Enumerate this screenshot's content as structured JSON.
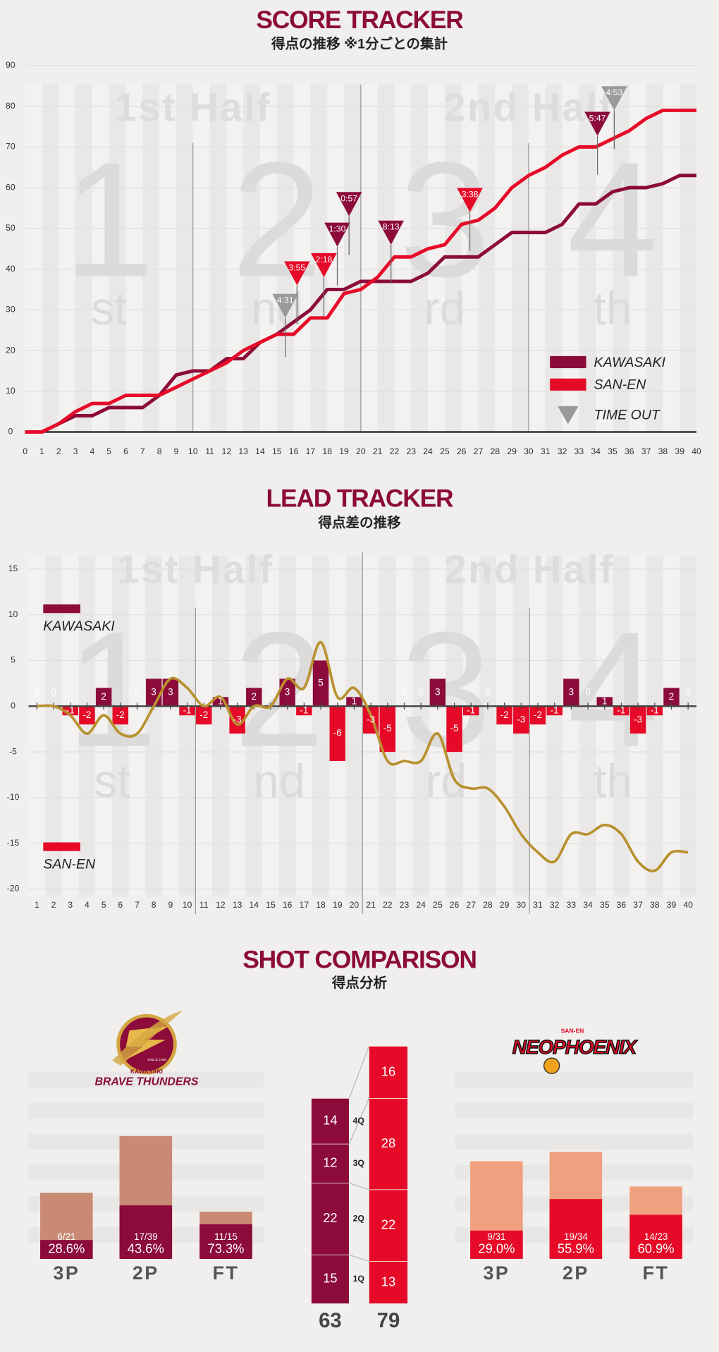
{
  "chart_data": [
    {
      "type": "line",
      "title": "SCORE TRACKER",
      "subtitle": "得点の推移 ※1分ごとの集計",
      "half_labels": [
        "1st Half",
        "2nd Half"
      ],
      "quarter_numbers": [
        "1",
        "2",
        "3",
        "4"
      ],
      "quarter_suffixes": [
        "st",
        "nd",
        "rd",
        "th"
      ],
      "x": [
        0,
        1,
        2,
        3,
        4,
        5,
        6,
        7,
        8,
        9,
        10,
        11,
        12,
        13,
        14,
        15,
        16,
        17,
        18,
        19,
        20,
        21,
        22,
        23,
        24,
        25,
        26,
        27,
        28,
        29,
        30,
        31,
        32,
        33,
        34,
        35,
        36,
        37,
        38,
        39,
        40
      ],
      "series": [
        {
          "name": "KAWASAKI",
          "color": "#8c0b3b",
          "values": [
            0,
            0,
            2,
            4,
            4,
            6,
            6,
            6,
            9,
            14,
            15,
            15,
            18,
            18,
            22,
            24,
            27,
            30,
            35,
            35,
            37,
            37,
            37,
            37,
            39,
            43,
            43,
            43,
            46,
            49,
            49,
            49,
            51,
            56,
            56,
            59,
            60,
            60,
            61,
            63,
            63
          ]
        },
        {
          "name": "SAN-EN",
          "color": "#e60a28",
          "values": [
            0,
            0,
            2,
            5,
            7,
            7,
            9,
            9,
            9,
            11,
            13,
            15,
            17,
            20,
            22,
            24,
            24,
            28,
            28,
            34,
            35,
            38,
            43,
            43,
            45,
            46,
            51,
            52,
            55,
            60,
            63,
            65,
            68,
            70,
            70,
            72,
            74,
            77,
            79,
            79,
            79
          ]
        }
      ],
      "xlim": [
        0,
        40
      ],
      "xticks": [
        0,
        1,
        2,
        3,
        4,
        5,
        6,
        7,
        8,
        9,
        10,
        11,
        12,
        13,
        14,
        15,
        16,
        17,
        18,
        19,
        20,
        21,
        22,
        23,
        24,
        25,
        26,
        27,
        28,
        29,
        30,
        31,
        32,
        33,
        34,
        35,
        36,
        37,
        38,
        39,
        40
      ],
      "ylim": [
        0,
        90
      ],
      "yticks": [
        0,
        10,
        20,
        30,
        40,
        50,
        60,
        70,
        80,
        90
      ],
      "grid": true,
      "quarter_breaks": [
        10,
        20,
        30
      ],
      "timeouts": [
        {
          "label": "4:31",
          "x": 15.5,
          "y": 28,
          "color": "#9a9a9a"
        },
        {
          "label": "3:55",
          "x": 16.2,
          "y": 36,
          "color": "#e60a28"
        },
        {
          "label": "2:18",
          "x": 17.8,
          "y": 38,
          "color": "#e60a28"
        },
        {
          "label": "1:30",
          "x": 18.6,
          "y": 45.5,
          "color": "#8c0b3b"
        },
        {
          "label": "0:57",
          "x": 19.3,
          "y": 53,
          "color": "#8c0b3b"
        },
        {
          "label": "8:13",
          "x": 21.8,
          "y": 46,
          "color": "#8c0b3b"
        },
        {
          "label": "3:38",
          "x": 26.5,
          "y": 54,
          "color": "#e60a28"
        },
        {
          "label": "5:47",
          "x": 34.1,
          "y": 72.7,
          "color": "#8c0b3b"
        },
        {
          "label": "4:53",
          "x": 35.1,
          "y": 79,
          "color": "#9a9a9a"
        }
      ],
      "timeout_legend": "TIME OUT",
      "timeout_color": "#9a9a9a"
    },
    {
      "type": "bar",
      "title": "LEAD TRACKER",
      "subtitle": "得点差の推移",
      "half_labels": [
        "1st Half",
        "2nd Half"
      ],
      "quarter_numbers": [
        "1",
        "2",
        "3",
        "4"
      ],
      "quarter_suffixes": [
        "st",
        "nd",
        "rd",
        "th"
      ],
      "x": [
        1,
        2,
        3,
        4,
        5,
        6,
        7,
        8,
        9,
        10,
        11,
        12,
        13,
        14,
        15,
        16,
        17,
        18,
        19,
        20,
        21,
        22,
        23,
        24,
        25,
        26,
        27,
        28,
        29,
        30,
        31,
        32,
        33,
        34,
        35,
        36,
        37,
        38,
        39,
        40
      ],
      "values": [
        0,
        0,
        -1,
        -2,
        2,
        -2,
        0,
        3,
        3,
        -1,
        -2,
        1,
        -3,
        2,
        0,
        3,
        -1,
        5,
        -6,
        1,
        -3,
        -5,
        0,
        0,
        3,
        -5,
        -1,
        0,
        -2,
        -3,
        -2,
        -1,
        3,
        0,
        1,
        -1,
        -3,
        -1,
        2,
        0
      ],
      "legend": [
        {
          "name": "KAWASAKI",
          "color": "#8c0b3b"
        },
        {
          "name": "SAN-EN",
          "color": "#e60a28"
        }
      ],
      "lead_line": {
        "color": "#b8902e",
        "values": [
          0,
          0,
          -1,
          -3,
          -1,
          -3,
          -3,
          0,
          3,
          2,
          0,
          1,
          -2,
          0,
          0,
          3,
          2,
          7,
          1,
          2,
          -1,
          -6,
          -6,
          -6,
          -3,
          -8,
          -9,
          -9,
          -11,
          -14,
          -16,
          -17,
          -14,
          -14,
          -13,
          -14,
          -17,
          -18,
          -16,
          -16
        ]
      },
      "xlim": [
        0.5,
        40.5
      ],
      "xticks": [
        1,
        2,
        3,
        4,
        5,
        6,
        7,
        8,
        9,
        10,
        11,
        12,
        13,
        14,
        15,
        16,
        17,
        18,
        19,
        20,
        21,
        22,
        23,
        24,
        25,
        26,
        27,
        28,
        29,
        30,
        31,
        32,
        33,
        34,
        35,
        36,
        37,
        38,
        39,
        40
      ],
      "ylim": [
        -20,
        15
      ],
      "yticks": [
        -20,
        -15,
        -10,
        -5,
        0,
        5,
        10,
        15
      ],
      "grid": true,
      "quarter_breaks": [
        10.5,
        20.5,
        30.5
      ]
    },
    {
      "type": "shots",
      "title": "SHOT COMPARISON",
      "subtitle": "得点分析",
      "categories": [
        "3P",
        "2P",
        "FT"
      ],
      "quarter_categories": [
        "1Q",
        "2Q",
        "3Q",
        "4Q"
      ],
      "teams": [
        {
          "logo_text": [
            "KAWASAKI",
            "BRAVE THUNDERS",
            "SINCE 1950"
          ],
          "color": "#8c0b3b",
          "attempt_color": "#c98a74",
          "made": [
            6,
            17,
            11
          ],
          "attempts": [
            21,
            39,
            15
          ],
          "made_labels": [
            "6/21",
            "17/39",
            "11/15"
          ],
          "pct_labels": [
            "28.6%",
            "43.6%",
            "73.3%"
          ],
          "quarter_points": [
            15,
            22,
            12,
            14
          ],
          "total": 63
        },
        {
          "logo_text": [
            "SAN-EN",
            "NEOPHOENIX"
          ],
          "color": "#e60a28",
          "attempt_color": "#f0a07e",
          "made": [
            9,
            19,
            14
          ],
          "attempts": [
            31,
            34,
            23
          ],
          "made_labels": [
            "9/31",
            "19/34",
            "14/23"
          ],
          "pct_labels": [
            "29.0%",
            "55.9%",
            "60.9%"
          ],
          "quarter_points": [
            13,
            22,
            28,
            16
          ],
          "total": 79
        }
      ]
    }
  ]
}
